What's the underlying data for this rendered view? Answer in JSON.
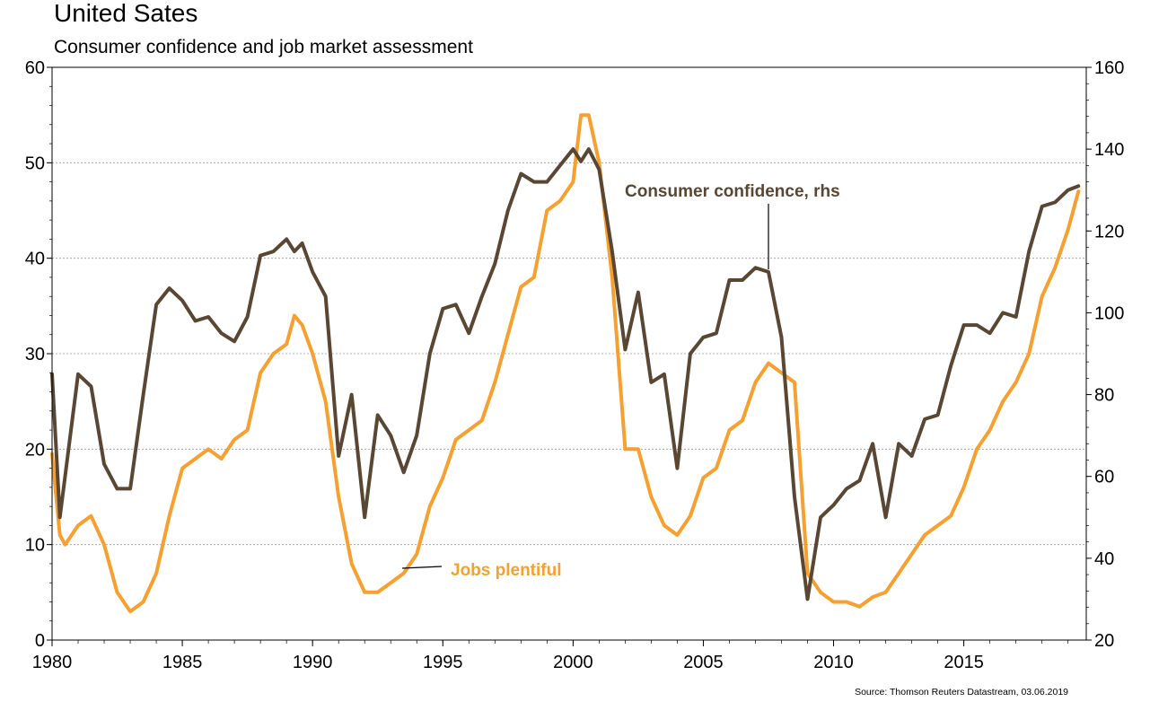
{
  "chart_data": {
    "type": "line",
    "title": "United Sates",
    "subtitle": "Consumer confidence and job market assessment",
    "source": "Source: Thomson Reuters Datastream, 03.06.2019",
    "xlim": [
      1980,
      2019.7
    ],
    "x_ticks": [
      1980,
      1985,
      1990,
      1995,
      2000,
      2005,
      2010,
      2015
    ],
    "x_tick_labels": [
      "1980",
      "1985",
      "1990",
      "1995",
      "2000",
      "2005",
      "2010",
      "2015"
    ],
    "y_left": {
      "lim": [
        0,
        60
      ],
      "ticks": [
        0,
        10,
        20,
        30,
        40,
        50,
        60
      ],
      "tick_labels": [
        "0",
        "10",
        "20",
        "30",
        "40",
        "50",
        "60"
      ]
    },
    "y_right": {
      "lim": [
        20,
        160
      ],
      "ticks": [
        20,
        40,
        60,
        80,
        100,
        120,
        140,
        160
      ],
      "tick_labels": [
        "20",
        "40",
        "60",
        "80",
        "100",
        "120",
        "140",
        "160"
      ]
    },
    "grid": true,
    "legend": "none (series labelled inline)",
    "series": [
      {
        "name": "Jobs plentiful",
        "axis": "left",
        "color": "#f7a030",
        "x": [
          1980.0,
          1980.3,
          1980.5,
          1981.0,
          1981.5,
          1982.0,
          1982.5,
          1983.0,
          1983.5,
          1984.0,
          1984.5,
          1985.0,
          1985.5,
          1986.0,
          1986.5,
          1987.0,
          1987.5,
          1988.0,
          1988.5,
          1989.0,
          1989.3,
          1989.6,
          1990.0,
          1990.5,
          1991.0,
          1991.5,
          1992.0,
          1992.5,
          1993.0,
          1993.5,
          1994.0,
          1994.5,
          1995.0,
          1995.5,
          1996.0,
          1996.5,
          1997.0,
          1997.5,
          1998.0,
          1998.5,
          1999.0,
          1999.5,
          2000.0,
          2000.3,
          2000.6,
          2001.0,
          2001.5,
          2002.0,
          2002.5,
          2003.0,
          2003.5,
          2004.0,
          2004.5,
          2005.0,
          2005.5,
          2006.0,
          2006.5,
          2007.0,
          2007.5,
          2008.0,
          2008.5,
          2009.0,
          2009.5,
          2010.0,
          2010.5,
          2011.0,
          2011.5,
          2012.0,
          2012.5,
          2013.0,
          2013.5,
          2014.0,
          2014.5,
          2015.0,
          2015.5,
          2016.0,
          2016.5,
          2017.0,
          2017.5,
          2018.0,
          2018.5,
          2019.0,
          2019.4
        ],
        "values": [
          19.5,
          11,
          10,
          12,
          13,
          10,
          5,
          3,
          4,
          7,
          13,
          18,
          19,
          20,
          19,
          21,
          22,
          28,
          30,
          31,
          34,
          33,
          30,
          25,
          15,
          8,
          5,
          5,
          6,
          7,
          9,
          14,
          17,
          21,
          22,
          23,
          27,
          32,
          37,
          38,
          45,
          46,
          48,
          55,
          55,
          50,
          38,
          20,
          20,
          15,
          12,
          11,
          13,
          17,
          18,
          22,
          23,
          27,
          29,
          28,
          27,
          7,
          5,
          4,
          4,
          3.5,
          4.5,
          5,
          7,
          9,
          11,
          12,
          13,
          16,
          20,
          22,
          25,
          27,
          30,
          36,
          39,
          43,
          47
        ]
      },
      {
        "name": "Consumer confidence, rhs",
        "axis": "right",
        "color": "#594633",
        "x": [
          1980.0,
          1980.3,
          1980.5,
          1981.0,
          1981.5,
          1982.0,
          1982.5,
          1983.0,
          1983.5,
          1984.0,
          1984.5,
          1985.0,
          1985.5,
          1986.0,
          1986.5,
          1987.0,
          1987.5,
          1988.0,
          1988.5,
          1989.0,
          1989.3,
          1989.6,
          1990.0,
          1990.5,
          1991.0,
          1991.5,
          1992.0,
          1992.5,
          1993.0,
          1993.5,
          1994.0,
          1994.5,
          1995.0,
          1995.5,
          1996.0,
          1996.5,
          1997.0,
          1997.5,
          1998.0,
          1998.5,
          1999.0,
          1999.5,
          2000.0,
          2000.3,
          2000.6,
          2001.0,
          2001.5,
          2002.0,
          2002.5,
          2003.0,
          2003.5,
          2004.0,
          2004.5,
          2005.0,
          2005.5,
          2006.0,
          2006.5,
          2007.0,
          2007.5,
          2008.0,
          2008.5,
          2009.0,
          2009.5,
          2010.0,
          2010.5,
          2011.0,
          2011.5,
          2012.0,
          2012.5,
          2013.0,
          2013.5,
          2014.0,
          2014.5,
          2015.0,
          2015.5,
          2016.0,
          2016.5,
          2017.0,
          2017.5,
          2018.0,
          2018.5,
          2019.0,
          2019.4
        ],
        "values": [
          85,
          50,
          60,
          85,
          82,
          63,
          57,
          57,
          80,
          102,
          106,
          103,
          98,
          99,
          95,
          93,
          99,
          114,
          115,
          118,
          115,
          117,
          110,
          104,
          65,
          80,
          50,
          75,
          70,
          61,
          70,
          90,
          101,
          102,
          95,
          104,
          112,
          125,
          134,
          132,
          132,
          136,
          140,
          137,
          140,
          135,
          115,
          91,
          105,
          83,
          85,
          62,
          90,
          94,
          95,
          108,
          108,
          111,
          110,
          94,
          55,
          30,
          50,
          53,
          57,
          59,
          68,
          50,
          68,
          65,
          74,
          75,
          87,
          97,
          97,
          95,
          100,
          99,
          115,
          126,
          127,
          130,
          131
        ]
      }
    ],
    "annotations": [
      {
        "text": "Consumer confidence, rhs",
        "color": "#594633"
      },
      {
        "text": "Jobs plentiful",
        "color": "#f7a030"
      }
    ]
  }
}
